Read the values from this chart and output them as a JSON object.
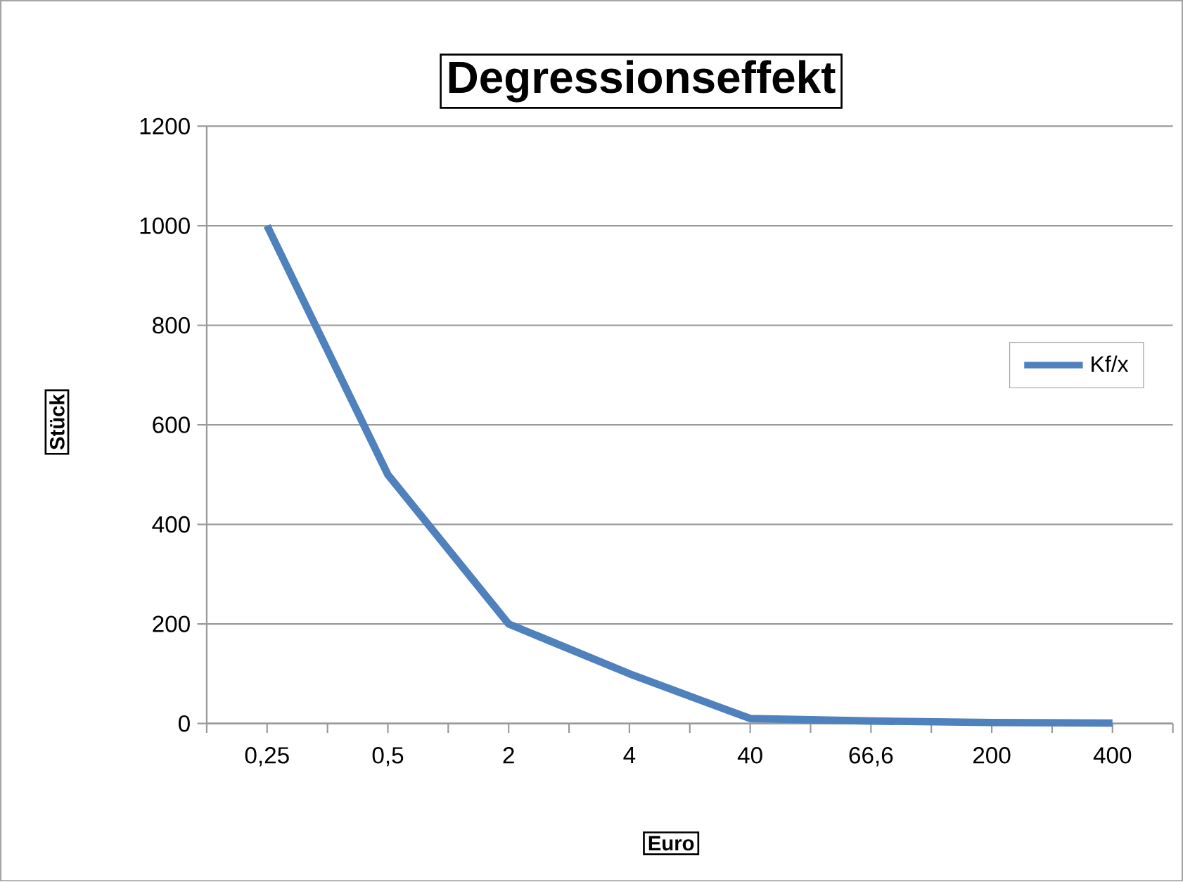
{
  "chart_data": {
    "type": "line",
    "title": "Degressionseffekt",
    "xlabel": "Euro",
    "ylabel": "Stück",
    "categories": [
      "0,25",
      "0,5",
      "2",
      "4",
      "40",
      "66,6",
      "200",
      "400"
    ],
    "series": [
      {
        "name": "Kf/x",
        "color": "#4f81bd",
        "values": [
          1000,
          500,
          200,
          100,
          10,
          5,
          2,
          1
        ]
      }
    ],
    "ylim": [
      0,
      1200
    ],
    "yticks": [
      0,
      200,
      400,
      600,
      800,
      1000,
      1200
    ],
    "grid": "y",
    "legend": "right",
    "marker": "none",
    "line_style": "solid"
  }
}
